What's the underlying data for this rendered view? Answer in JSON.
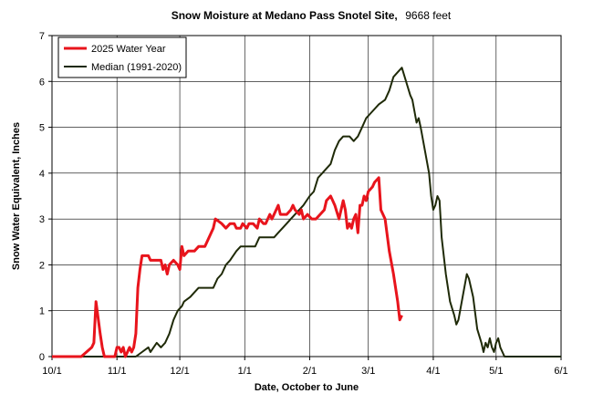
{
  "chart_data": {
    "type": "line",
    "title": "Snow Moisture at Medano Pass Snotel Site,",
    "subtitle": "9668 feet",
    "xlabel": "Date, October to June",
    "ylabel": "Snow Water Equivalent, Inches",
    "x_ticks": [
      "10/1",
      "11/1",
      "12/1",
      "1/1",
      "2/1",
      "3/1",
      "4/1",
      "5/1",
      "6/1"
    ],
    "y_ticks": [
      "0",
      "1",
      "2",
      "3",
      "4",
      "5",
      "6",
      "7"
    ],
    "ylim": [
      0,
      7
    ],
    "xlim": [
      "10/1",
      "6/1"
    ],
    "grid": true,
    "legend_position": "top-left",
    "series": [
      {
        "name": "2025 Water Year",
        "color": "#e8141c",
        "points": [
          [
            "10/1",
            0
          ],
          [
            "10/15",
            0
          ],
          [
            "10/20",
            0.2
          ],
          [
            "10/21",
            0.3
          ],
          [
            "10/22",
            1.2
          ],
          [
            "10/24",
            0.5
          ],
          [
            "10/25",
            0.2
          ],
          [
            "10/26",
            0
          ],
          [
            "10/28",
            0
          ],
          [
            "10/31",
            0
          ],
          [
            "11/1",
            0.2
          ],
          [
            "11/2",
            0.2
          ],
          [
            "11/3",
            0.1
          ],
          [
            "11/4",
            0.2
          ],
          [
            "11/5",
            0
          ],
          [
            "11/6",
            0.1
          ],
          [
            "11/7",
            0.2
          ],
          [
            "11/8",
            0.1
          ],
          [
            "11/9",
            0.2
          ],
          [
            "11/10",
            0.5
          ],
          [
            "11/11",
            1.5
          ],
          [
            "11/12",
            1.9
          ],
          [
            "11/13",
            2.2
          ],
          [
            "11/16",
            2.2
          ],
          [
            "11/17",
            2.1
          ],
          [
            "11/22",
            2.1
          ],
          [
            "11/23",
            1.9
          ],
          [
            "11/24",
            2.0
          ],
          [
            "11/25",
            1.8
          ],
          [
            "11/26",
            2.0
          ],
          [
            "11/28",
            2.1
          ],
          [
            "11/30",
            2.0
          ],
          [
            "12/1",
            1.9
          ],
          [
            "12/2",
            2.4
          ],
          [
            "12/3",
            2.2
          ],
          [
            "12/5",
            2.3
          ],
          [
            "12/8",
            2.3
          ],
          [
            "12/10",
            2.4
          ],
          [
            "12/13",
            2.4
          ],
          [
            "12/14",
            2.5
          ],
          [
            "12/16",
            2.7
          ],
          [
            "12/17",
            2.8
          ],
          [
            "12/18",
            3.0
          ],
          [
            "12/21",
            2.9
          ],
          [
            "12/23",
            2.8
          ],
          [
            "12/25",
            2.9
          ],
          [
            "12/27",
            2.9
          ],
          [
            "12/28",
            2.8
          ],
          [
            "12/30",
            2.8
          ],
          [
            "12/31",
            2.9
          ],
          [
            "1/2",
            2.8
          ],
          [
            "1/3",
            2.9
          ],
          [
            "1/5",
            2.9
          ],
          [
            "1/7",
            2.8
          ],
          [
            "1/8",
            3.0
          ],
          [
            "1/10",
            2.9
          ],
          [
            "1/11",
            2.9
          ],
          [
            "1/13",
            3.1
          ],
          [
            "1/14",
            3.0
          ],
          [
            "1/17",
            3.3
          ],
          [
            "1/18",
            3.1
          ],
          [
            "1/21",
            3.1
          ],
          [
            "1/23",
            3.2
          ],
          [
            "1/24",
            3.3
          ],
          [
            "1/25",
            3.2
          ],
          [
            "1/27",
            3.1
          ],
          [
            "1/28",
            3.2
          ],
          [
            "1/29",
            3.0
          ],
          [
            "1/31",
            3.1
          ],
          [
            "2/2",
            3.0
          ],
          [
            "2/4",
            3.0
          ],
          [
            "2/6",
            3.1
          ],
          [
            "2/8",
            3.2
          ],
          [
            "2/9",
            3.4
          ],
          [
            "2/11",
            3.5
          ],
          [
            "2/12",
            3.4
          ],
          [
            "2/13",
            3.3
          ],
          [
            "2/15",
            3.0
          ],
          [
            "2/17",
            3.4
          ],
          [
            "2/18",
            3.2
          ],
          [
            "2/19",
            2.8
          ],
          [
            "2/20",
            2.9
          ],
          [
            "2/21",
            2.8
          ],
          [
            "2/22",
            3.0
          ],
          [
            "2/23",
            3.1
          ],
          [
            "2/24",
            2.7
          ],
          [
            "2/25",
            3.3
          ],
          [
            "2/26",
            3.3
          ],
          [
            "2/27",
            3.5
          ],
          [
            "2/28",
            3.4
          ],
          [
            "3/1",
            3.6
          ],
          [
            "3/3",
            3.7
          ],
          [
            "3/4",
            3.8
          ],
          [
            "3/6",
            3.9
          ],
          [
            "3/7",
            3.2
          ],
          [
            "3/9",
            3.0
          ],
          [
            "3/11",
            2.3
          ],
          [
            "3/13",
            1.8
          ],
          [
            "3/15",
            1.2
          ],
          [
            "3/16",
            0.8
          ],
          [
            "3/17",
            0.9
          ]
        ]
      },
      {
        "name": "Median (1991-2020)",
        "color": "#1f2a08",
        "points": [
          [
            "10/1",
            0
          ],
          [
            "11/5",
            0
          ],
          [
            "11/10",
            0
          ],
          [
            "11/13",
            0.1
          ],
          [
            "11/16",
            0.2
          ],
          [
            "11/17",
            0.1
          ],
          [
            "11/20",
            0.3
          ],
          [
            "11/22",
            0.2
          ],
          [
            "11/24",
            0.3
          ],
          [
            "11/26",
            0.5
          ],
          [
            "11/28",
            0.8
          ],
          [
            "11/30",
            1.0
          ],
          [
            "12/2",
            1.1
          ],
          [
            "12/3",
            1.2
          ],
          [
            "12/6",
            1.3
          ],
          [
            "12/8",
            1.4
          ],
          [
            "12/10",
            1.5
          ],
          [
            "12/17",
            1.5
          ],
          [
            "12/19",
            1.7
          ],
          [
            "12/21",
            1.8
          ],
          [
            "12/23",
            2.0
          ],
          [
            "12/25",
            2.1
          ],
          [
            "12/28",
            2.3
          ],
          [
            "12/30",
            2.4
          ],
          [
            "1/6",
            2.4
          ],
          [
            "1/8",
            2.6
          ],
          [
            "1/15",
            2.6
          ],
          [
            "1/17",
            2.7
          ],
          [
            "1/19",
            2.8
          ],
          [
            "1/21",
            2.9
          ],
          [
            "1/23",
            3.0
          ],
          [
            "1/25",
            3.1
          ],
          [
            "1/27",
            3.2
          ],
          [
            "1/29",
            3.3
          ],
          [
            "2/1",
            3.5
          ],
          [
            "2/3",
            3.6
          ],
          [
            "2/5",
            3.9
          ],
          [
            "2/7",
            4.0
          ],
          [
            "2/9",
            4.1
          ],
          [
            "2/11",
            4.2
          ],
          [
            "2/13",
            4.5
          ],
          [
            "2/15",
            4.7
          ],
          [
            "2/17",
            4.8
          ],
          [
            "2/20",
            4.8
          ],
          [
            "2/22",
            4.7
          ],
          [
            "2/24",
            4.8
          ],
          [
            "2/26",
            5.0
          ],
          [
            "2/28",
            5.2
          ],
          [
            "3/2",
            5.3
          ],
          [
            "3/4",
            5.4
          ],
          [
            "3/6",
            5.5
          ],
          [
            "3/9",
            5.6
          ],
          [
            "3/11",
            5.8
          ],
          [
            "3/13",
            6.1
          ],
          [
            "3/15",
            6.2
          ],
          [
            "3/17",
            6.3
          ],
          [
            "3/19",
            6.0
          ],
          [
            "3/21",
            5.7
          ],
          [
            "3/22",
            5.6
          ],
          [
            "3/24",
            5.1
          ],
          [
            "3/25",
            5.2
          ],
          [
            "3/26",
            5.0
          ],
          [
            "3/28",
            4.5
          ],
          [
            "3/30",
            4.0
          ],
          [
            "3/31",
            3.5
          ],
          [
            "4/1",
            3.2
          ],
          [
            "4/2",
            3.3
          ],
          [
            "4/3",
            3.5
          ],
          [
            "4/4",
            3.4
          ],
          [
            "4/5",
            2.6
          ],
          [
            "4/7",
            1.8
          ],
          [
            "4/9",
            1.2
          ],
          [
            "4/11",
            0.9
          ],
          [
            "4/12",
            0.7
          ],
          [
            "4/13",
            0.8
          ],
          [
            "4/15",
            1.3
          ],
          [
            "4/17",
            1.8
          ],
          [
            "4/18",
            1.7
          ],
          [
            "4/20",
            1.3
          ],
          [
            "4/22",
            0.6
          ],
          [
            "4/24",
            0.3
          ],
          [
            "4/25",
            0.1
          ],
          [
            "4/26",
            0.3
          ],
          [
            "4/27",
            0.2
          ],
          [
            "4/28",
            0.4
          ],
          [
            "4/29",
            0.2
          ],
          [
            "4/30",
            0.1
          ],
          [
            "5/1",
            0.3
          ],
          [
            "5/2",
            0.4
          ],
          [
            "5/3",
            0.2
          ],
          [
            "5/5",
            0
          ],
          [
            "6/1",
            0
          ]
        ]
      }
    ]
  }
}
